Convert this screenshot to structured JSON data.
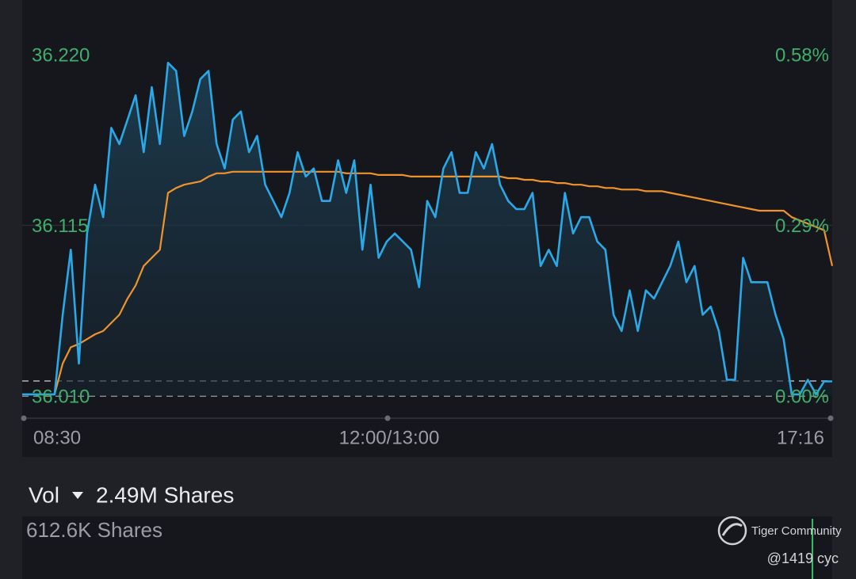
{
  "chart_data": {
    "type": "line",
    "xtick_labels": [
      "08:30",
      "12:00/13:00",
      "17:16"
    ],
    "ylim": [
      36.01,
      36.22
    ],
    "yticks": [
      {
        "value": 36.01,
        "label": "36.010"
      },
      36.115,
      {
        "value": 36.22,
        "label": "36.220"
      }
    ],
    "y2lim": [
      0,
      0.58
    ],
    "y2ticks": [
      {
        "value": 0,
        "label": "0.00%"
      },
      {
        "value": 0.29,
        "label": "0.29%"
      },
      {
        "value": 0.58,
        "label": "0.58%"
      }
    ],
    "grid": true,
    "series": [
      {
        "color": "#29a9e8",
        "values": [
          36.011,
          36.011,
          36.011,
          36.011,
          36.011,
          36.06,
          36.1,
          36.03,
          36.11,
          36.14,
          36.12,
          36.175,
          36.165,
          36.18,
          36.195,
          36.16,
          36.2,
          36.165,
          36.215,
          36.21,
          36.17,
          36.185,
          36.205,
          36.21,
          36.165,
          36.15,
          36.18,
          36.185,
          36.16,
          36.17,
          36.14,
          36.13,
          36.12,
          36.135,
          36.16,
          36.145,
          36.15,
          36.13,
          36.13,
          36.155,
          36.135,
          36.155,
          36.1,
          36.14,
          36.095,
          36.105,
          36.11,
          36.105,
          36.1,
          36.077,
          36.13,
          36.12,
          36.15,
          36.16,
          36.135,
          36.135,
          36.16,
          36.15,
          36.165,
          36.14,
          36.13,
          36.125,
          36.125,
          36.135,
          36.09,
          36.1,
          36.09,
          36.135,
          36.11,
          36.12,
          36.12,
          36.105,
          36.1,
          36.06,
          36.05,
          36.075,
          36.05,
          36.075,
          36.07,
          36.08,
          36.09,
          36.105,
          36.08,
          36.09,
          36.06,
          36.065,
          36.05,
          36.02,
          36.02,
          36.095,
          36.08,
          36.08,
          36.08,
          36.06,
          36.045,
          36.011,
          36.011,
          36.02,
          36.011,
          36.019,
          36.019
        ]
      },
      {
        "color": "#f0932b",
        "values": [
          null,
          null,
          null,
          null,
          36.011,
          36.03,
          36.04,
          36.042,
          36.045,
          36.048,
          36.05,
          36.055,
          36.06,
          36.07,
          36.078,
          36.09,
          36.095,
          36.1,
          36.135,
          36.138,
          36.14,
          36.141,
          36.142,
          36.145,
          36.147,
          36.147,
          36.148,
          36.148,
          36.148,
          36.148,
          36.148,
          36.148,
          36.148,
          36.148,
          36.148,
          36.148,
          36.148,
          36.148,
          36.148,
          36.148,
          36.147,
          36.147,
          36.147,
          36.147,
          36.146,
          36.146,
          36.146,
          36.146,
          36.145,
          36.145,
          36.145,
          36.145,
          36.145,
          36.145,
          36.145,
          36.145,
          36.145,
          36.145,
          36.145,
          36.145,
          36.144,
          36.144,
          36.143,
          36.143,
          36.142,
          36.142,
          36.141,
          36.141,
          36.14,
          36.14,
          36.139,
          36.139,
          36.138,
          36.138,
          36.137,
          36.137,
          36.137,
          36.136,
          36.136,
          36.136,
          36.135,
          36.134,
          36.133,
          36.132,
          36.131,
          36.13,
          36.129,
          36.128,
          36.127,
          36.126,
          36.125,
          36.124,
          36.124,
          36.124,
          36.124,
          36.12,
          36.118,
          36.116,
          36.114,
          36.112,
          36.09
        ]
      }
    ]
  },
  "volume": {
    "label": "Vol",
    "total": "2.49M Shares",
    "current": "612.6K Shares"
  },
  "watermark": {
    "brand": "Tiger Community",
    "user": "@1419 cyc"
  }
}
